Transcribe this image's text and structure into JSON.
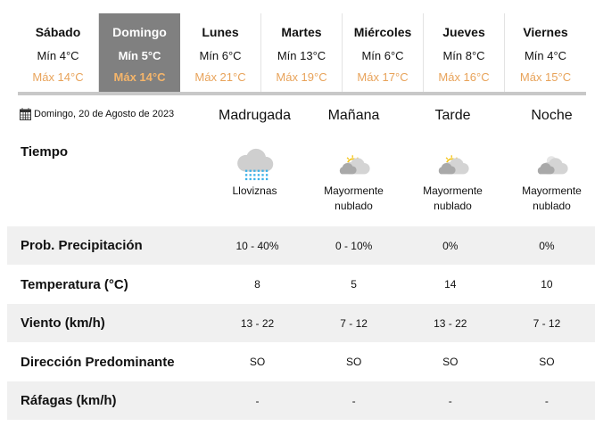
{
  "days": [
    {
      "name": "Sábado",
      "min": "Mín 4°C",
      "max": "Máx 14°C",
      "selected": false
    },
    {
      "name": "Domingo",
      "min": "Mín 5°C",
      "max": "Máx 14°C",
      "selected": true
    },
    {
      "name": "Lunes",
      "min": "Mín 6°C",
      "max": "Máx 21°C",
      "selected": false
    },
    {
      "name": "Martes",
      "min": "Mín 13°C",
      "max": "Máx 19°C",
      "selected": false
    },
    {
      "name": "Miércoles",
      "min": "Mín 6°C",
      "max": "Máx 17°C",
      "selected": false
    },
    {
      "name": "Jueves",
      "min": "Mín 8°C",
      "max": "Máx 16°C",
      "selected": false
    },
    {
      "name": "Viernes",
      "min": "Mín 4°C",
      "max": "Máx 15°C",
      "selected": false
    }
  ],
  "date": "Domingo, 20 de Agosto de 2023",
  "periods": [
    "Madrugada",
    "Mañana",
    "Tarde",
    "Noche"
  ],
  "weather_label": "Tiempo",
  "weather": [
    {
      "icon": "drizzle-icon",
      "text": "Lloviznas"
    },
    {
      "icon": "partly-cloudy-day-icon",
      "text": "Mayormente nublado"
    },
    {
      "icon": "partly-cloudy-day-icon",
      "text": "Mayormente nublado"
    },
    {
      "icon": "partly-cloudy-night-icon",
      "text": "Mayormente nublado"
    }
  ],
  "rows": [
    {
      "label": "Prob. Precipitación",
      "values": [
        "10 - 40%",
        "0 - 10%",
        "0%",
        "0%"
      ]
    },
    {
      "label": "Temperatura (°C)",
      "values": [
        "8",
        "5",
        "14",
        "10"
      ]
    },
    {
      "label": "Viento (km/h)",
      "values": [
        "13 - 22",
        "7 - 12",
        "13 - 22",
        "7 - 12"
      ]
    },
    {
      "label": "Dirección Predominante",
      "values": [
        "SO",
        "SO",
        "SO",
        "SO"
      ]
    },
    {
      "label": "Ráfagas (km/h)",
      "values": [
        "-",
        "-",
        "-",
        "-"
      ]
    }
  ]
}
